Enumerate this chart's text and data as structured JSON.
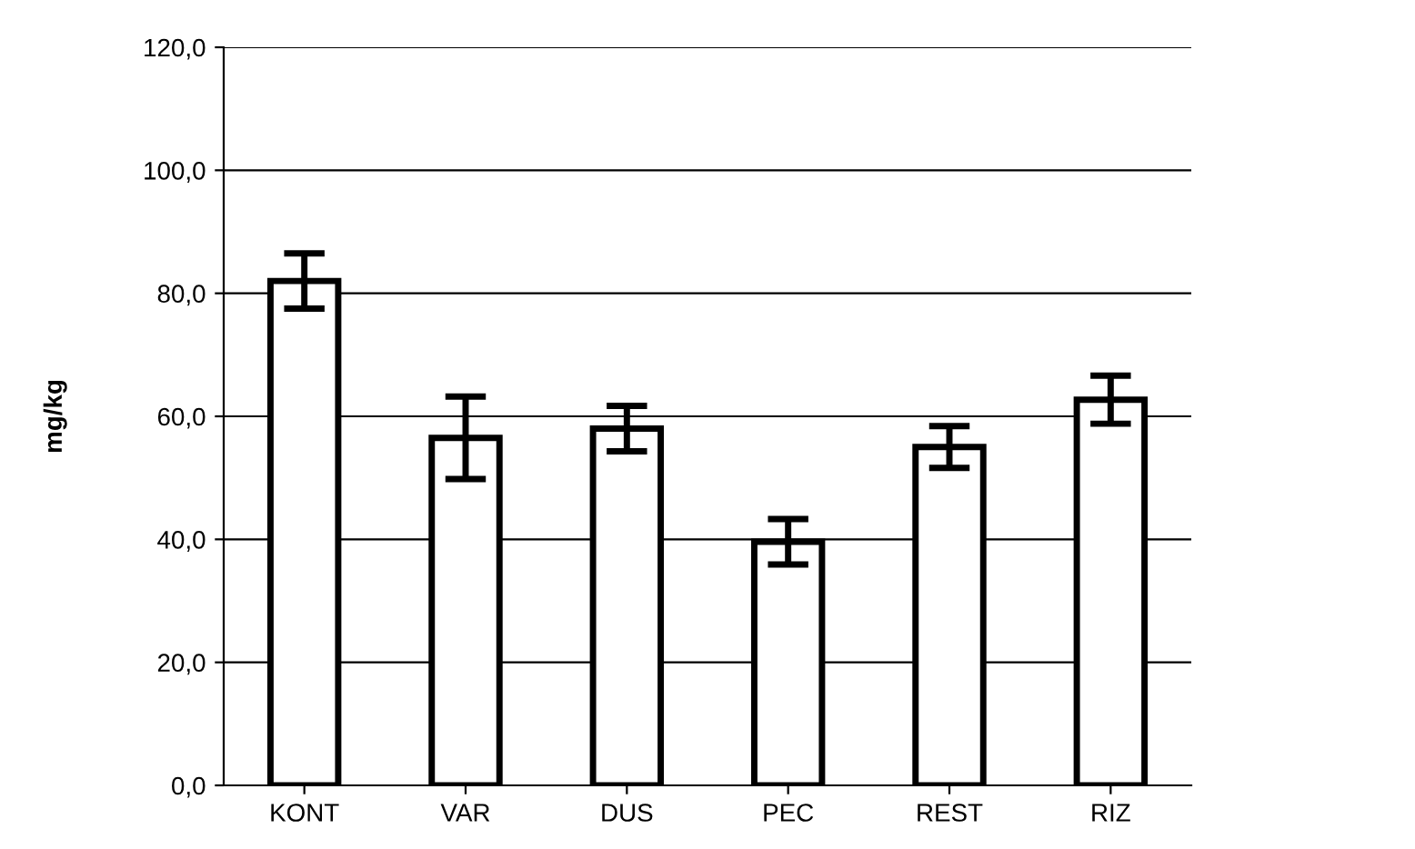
{
  "chart_data": {
    "type": "bar",
    "ylabel": "mg/kg",
    "categories": [
      "KONT",
      "VAR",
      "DUS",
      "PEC",
      "REST",
      "RIZ"
    ],
    "values": [
      82.0,
      56.5,
      58.0,
      39.6,
      55.0,
      62.7
    ],
    "errors": [
      4.5,
      6.7,
      3.7,
      3.7,
      3.4,
      3.9
    ],
    "color": "#ffffff",
    "ylim": [
      0,
      120
    ],
    "yticks": [
      {
        "value": 0,
        "label": "0,0"
      },
      {
        "value": 20,
        "label": "20,0"
      },
      {
        "value": 40,
        "label": "40,0"
      },
      {
        "value": 60,
        "label": "60,0"
      },
      {
        "value": 80,
        "label": "80,0"
      },
      {
        "value": 100,
        "label": "100,0"
      },
      {
        "value": 120,
        "label": "120,0"
      }
    ],
    "grid": "y"
  }
}
